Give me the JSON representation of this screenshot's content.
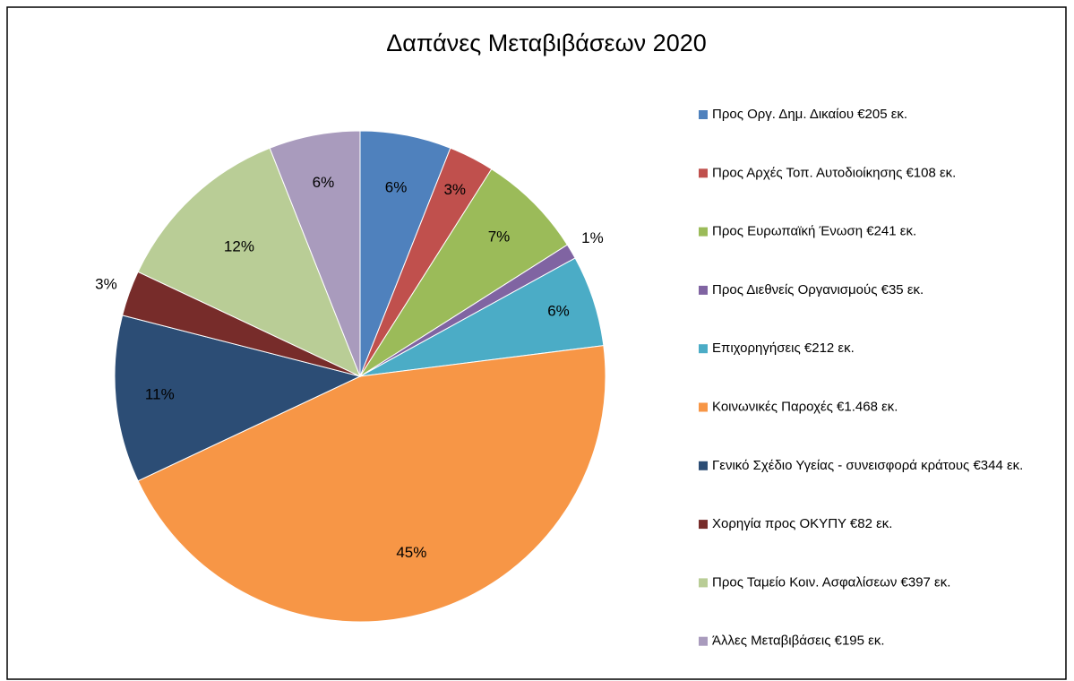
{
  "chart_data": {
    "type": "pie",
    "title": "Δαπάνες Μεταβιβάσεων 2020",
    "categories": [
      "Προς Οργ. Δημ. Δικαίου €205 εκ.",
      "Προς Αρχές Τοπ. Αυτοδιοίκησης €108 εκ.",
      "Προς Ευρωπαϊκή Ένωση €241 εκ.",
      "Προς Διεθνείς Οργανισμούς €35 εκ.",
      "Επιχορηγήσεις €212 εκ.",
      "Κοινωνικές Παροχές €1.468 εκ.",
      "Γενικό Σχέδιο Υγείας - συνεισφορά κράτους €344 εκ.",
      "Χορηγία προς ΟΚΥΠΥ €82 εκ.",
      "Προς Ταμείο Κοιν. Ασφαλίσεων €397 εκ.",
      "Άλλες Μεταβιβάσεις €195 εκ."
    ],
    "values": [
      6,
      3,
      7,
      1,
      6,
      45,
      11,
      3,
      12,
      6
    ],
    "value_labels": [
      "6%",
      "3%",
      "7%",
      "1%",
      "6%",
      "45%",
      "11%",
      "3%",
      "12%",
      "6%"
    ],
    "colors": [
      "#4f81bd",
      "#c0504d",
      "#9bbb59",
      "#8064a2",
      "#4bacc6",
      "#f79646",
      "#2c4d75",
      "#772c2a",
      "#b9cd96",
      "#a99bbd"
    ],
    "legend": "right"
  }
}
